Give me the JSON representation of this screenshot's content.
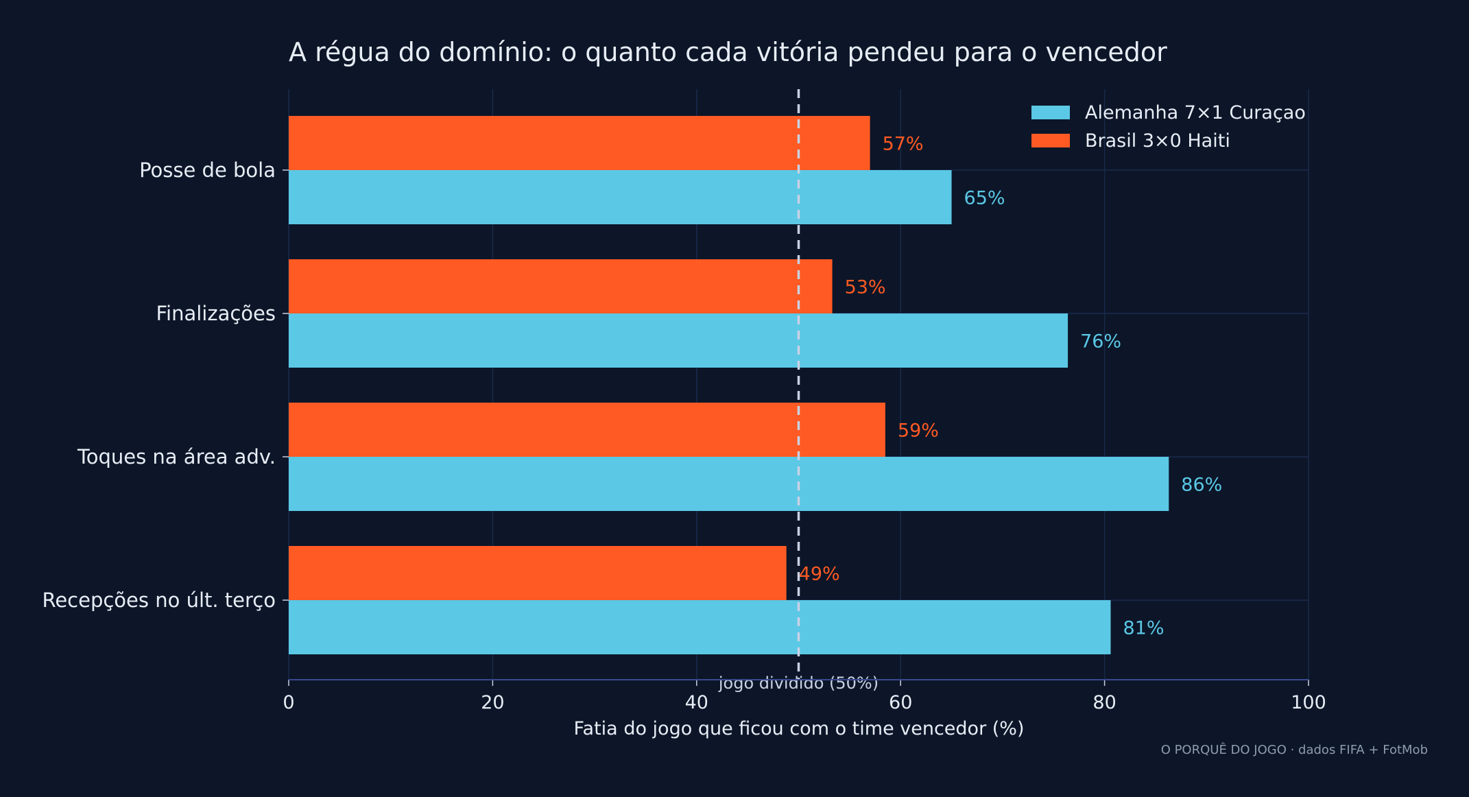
{
  "chart_data": {
    "type": "bar",
    "orientation": "horizontal",
    "title": "A régua do domínio: o quanto cada vitória pendeu para o vencedor",
    "xlabel": "Fatia do jogo que ficou com o time vencedor (%)",
    "ylabel": "",
    "xlim": [
      0,
      100
    ],
    "xticks": [
      "0",
      "20",
      "40",
      "60",
      "80",
      "100"
    ],
    "categories": [
      "Posse de bola",
      "Finalizações",
      "Toques na área adv.",
      "Recepções no últ. terço"
    ],
    "series": [
      {
        "name": "Alemanha 7×1 Curaçao",
        "color": "#5bc8e6",
        "values": [
          65,
          76.4,
          86.3,
          80.6
        ],
        "labels": [
          "65%",
          "76%",
          "86%",
          "81%"
        ]
      },
      {
        "name": "Brasil 3×0 Haiti",
        "color": "#ff5a23",
        "values": [
          57,
          53.3,
          58.5,
          48.8
        ],
        "labels": [
          "57%",
          "53%",
          "59%",
          "49%"
        ]
      }
    ],
    "reference_line": {
      "value": 50,
      "label": "jogo dividido (50%)",
      "style": "dashed"
    },
    "grid": true,
    "legend": "top-right",
    "source": "O PORQUÊ DO JOGO · dados FIFA + FotMob"
  }
}
